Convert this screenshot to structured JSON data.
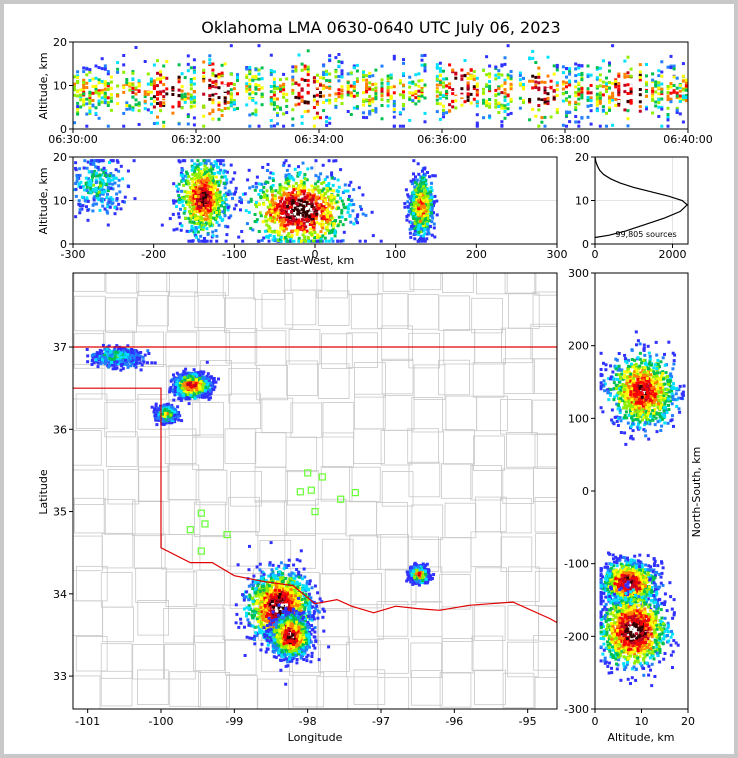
{
  "title": "Oklahoma LMA 0630-0640 UTC July 06, 2023",
  "colors": {
    "background": "#ffffff",
    "state_border": "#e00000",
    "county_lines": "#c8c8c8",
    "stations": "#66ff33",
    "density_scale": [
      "#3030ff",
      "#2080ff",
      "#00e0ff",
      "#00c050",
      "#90ee00",
      "#ffff00",
      "#ff8000",
      "#ff0000",
      "#c00020",
      "#300000",
      "#ffffff"
    ]
  },
  "panels": {
    "time_height": {
      "type": "heatmap",
      "ylabel": "Altitude, km",
      "yticks": [
        "0",
        "10",
        "20"
      ],
      "xticks": [
        "06:30:00",
        "06:32:00",
        "06:34:00",
        "06:36:00",
        "06:38:00",
        "06:40:00"
      ],
      "xrange_minutes": [
        0,
        10
      ],
      "ylim": [
        0,
        20
      ]
    },
    "ew_height": {
      "type": "heatmap",
      "xlabel": "East-West, km",
      "ylabel": "Altitude, km",
      "xticks": [
        "-300",
        "-200",
        "-100",
        "0",
        "100",
        "200",
        "300"
      ],
      "yticks": [
        "0",
        "10",
        "20"
      ],
      "xlim": [
        -300,
        300
      ],
      "ylim": [
        0,
        20
      ]
    },
    "histogram": {
      "type": "line",
      "xticks": [
        "0",
        "2000"
      ],
      "yticks": [
        "0",
        "10",
        "20"
      ],
      "xlim": [
        0,
        2400
      ],
      "ylim": [
        0,
        20
      ],
      "annotation": "99,805 sources"
    },
    "plan": {
      "type": "heatmap",
      "xlabel": "Longitude",
      "ylabel": "Latitude",
      "xticks": [
        "-101",
        "-100",
        "-99",
        "-98",
        "-97",
        "-96",
        "-95"
      ],
      "yticks": [
        "33",
        "34",
        "35",
        "36",
        "37"
      ],
      "xlim": [
        -101.2,
        -94.6
      ],
      "ylim": [
        32.6,
        37.9
      ]
    },
    "ns_height": {
      "type": "heatmap",
      "xlabel": "Altitude, km",
      "ylabel": "North-South, km",
      "xticks": [
        "0",
        "10",
        "20"
      ],
      "yticks": [
        "300",
        "200",
        "100",
        "0",
        "-100",
        "-200",
        "-300"
      ],
      "xlim": [
        0,
        20
      ],
      "ylim": [
        -300,
        300
      ]
    }
  },
  "chart_data": [
    {
      "type": "heatmap",
      "title": "Oklahoma LMA 0630-0640 UTC July 06, 2023",
      "xlabel": "",
      "ylabel": "Altitude, km",
      "xlim_minutes": [
        0,
        10
      ],
      "ylim": [
        0,
        20
      ],
      "active_minutes_most_intense": [
        1.5,
        2.3,
        3.8,
        6.3,
        7.6,
        9.0
      ]
    },
    {
      "type": "heatmap",
      "xlabel": "East-West, km",
      "ylabel": "Altitude, km",
      "xlim": [
        -300,
        300
      ],
      "ylim": [
        0,
        20
      ],
      "clusters": [
        {
          "x": -140,
          "z": 11,
          "dx": 22,
          "dz": 6,
          "intensity": 0.85
        },
        {
          "x": -20,
          "z": 8,
          "dx": 45,
          "dz": 6,
          "intensity": 1.0
        },
        {
          "x": 130,
          "z": 9,
          "dx": 10,
          "dz": 5,
          "intensity": 0.7
        },
        {
          "x": -270,
          "z": 14,
          "dx": 25,
          "dz": 5,
          "intensity": 0.3
        }
      ]
    },
    {
      "type": "line",
      "xlabel": "",
      "ylabel": "",
      "xlim": [
        0,
        2400
      ],
      "ylim": [
        0,
        20
      ],
      "x": [
        0,
        350,
        800,
        1300,
        1800,
        2200,
        2380,
        2250,
        1900,
        1450,
        1000,
        650,
        400,
        220,
        120,
        60,
        20,
        0
      ],
      "y": [
        1.5,
        2,
        3,
        4.5,
        6,
        7.5,
        9,
        10,
        11,
        12,
        13,
        14,
        15,
        16,
        17,
        18,
        19,
        20
      ],
      "annotation": "99,805 sources"
    },
    {
      "type": "heatmap",
      "xlabel": "Longitude",
      "ylabel": "Latitude",
      "xlim": [
        -101.2,
        -94.6
      ],
      "ylim": [
        32.6,
        37.9
      ],
      "clusters": [
        {
          "lon": -98.4,
          "lat": 33.85,
          "dlon": 0.38,
          "dlat": 0.38,
          "intensity": 1.0
        },
        {
          "lon": -98.25,
          "lat": 33.5,
          "dlon": 0.22,
          "dlat": 0.22,
          "intensity": 0.95
        },
        {
          "lon": -99.6,
          "lat": 36.55,
          "dlon": 0.2,
          "dlat": 0.12,
          "intensity": 0.85
        },
        {
          "lon": -96.5,
          "lat": 34.25,
          "dlon": 0.1,
          "dlat": 0.08,
          "intensity": 0.75
        },
        {
          "lon": -99.95,
          "lat": 36.2,
          "dlon": 0.12,
          "dlat": 0.08,
          "intensity": 0.5
        },
        {
          "lon": -100.6,
          "lat": 36.9,
          "dlon": 0.3,
          "dlat": 0.1,
          "intensity": 0.3
        }
      ],
      "stations": [
        [
          -98.0,
          35.47
        ],
        [
          -97.8,
          35.42
        ],
        [
          -98.1,
          35.24
        ],
        [
          -97.95,
          35.26
        ],
        [
          -97.55,
          35.15
        ],
        [
          -97.35,
          35.23
        ],
        [
          -99.45,
          34.98
        ],
        [
          -99.6,
          34.78
        ],
        [
          -99.4,
          34.85
        ],
        [
          -99.45,
          34.52
        ],
        [
          -99.1,
          34.72
        ],
        [
          -97.9,
          35.0
        ]
      ]
    },
    {
      "type": "heatmap",
      "xlabel": "Altitude, km",
      "ylabel": "North-South, km",
      "xlim": [
        0,
        20
      ],
      "ylim": [
        -300,
        300
      ],
      "clusters": [
        {
          "z": 10,
          "y": 140,
          "dz": 5,
          "dy": 35,
          "intensity": 0.85
        },
        {
          "z": 7,
          "y": -125,
          "dz": 4,
          "dy": 20,
          "intensity": 0.95
        },
        {
          "z": 8,
          "y": -190,
          "dz": 5,
          "dy": 35,
          "intensity": 1.0
        }
      ]
    }
  ]
}
